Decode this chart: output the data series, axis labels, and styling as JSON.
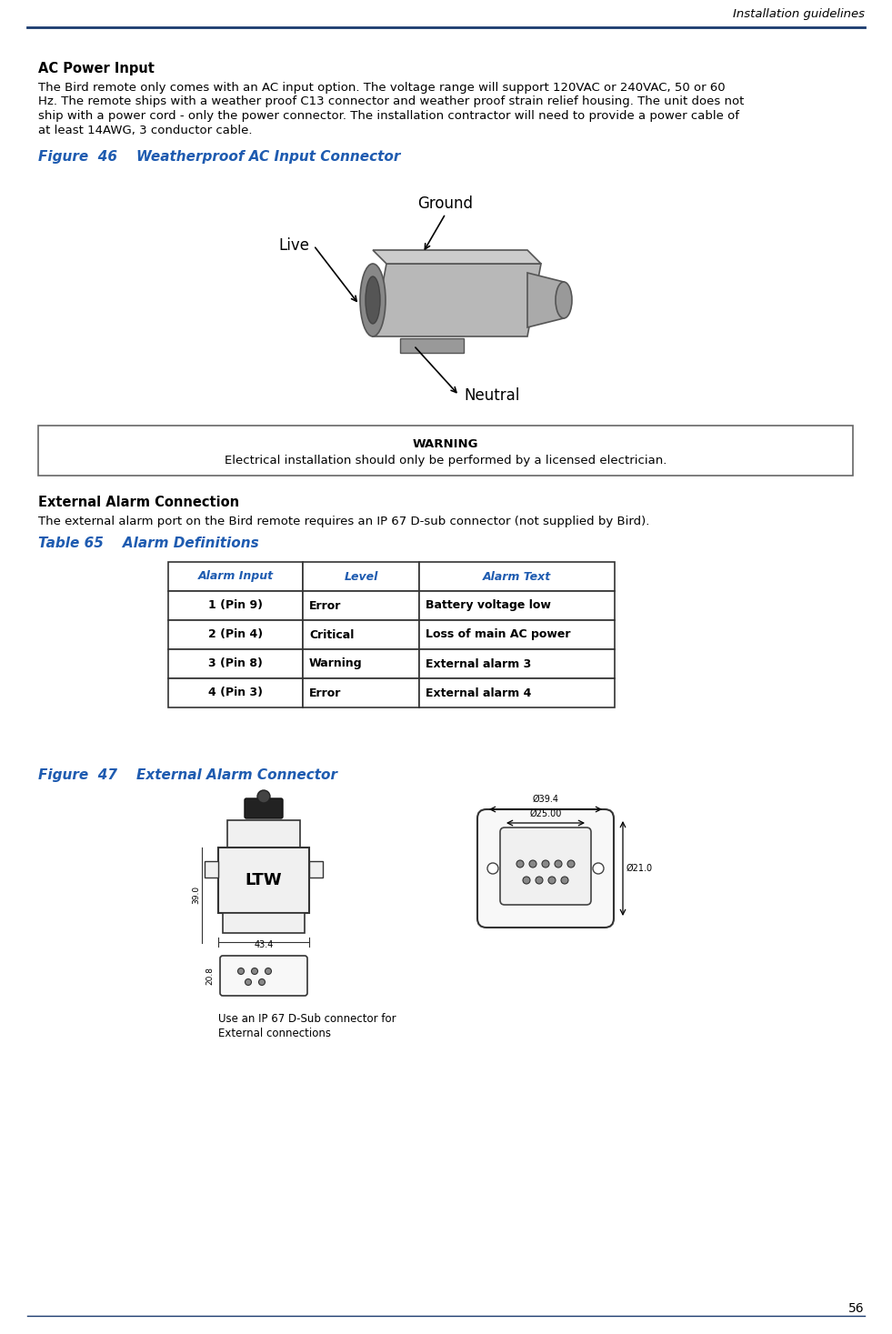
{
  "page_title": "Installation guidelines",
  "page_number": "56",
  "header_line_color": "#1a3a6e",
  "ac_power_heading": "AC Power Input",
  "ac_power_lines": [
    "The Bird remote only comes with an AC input option. The voltage range will support 120VAC or 240VAC, 50 or 60",
    "Hz. The remote ships with a weather proof C13 connector and weather proof strain relief housing. The unit does not",
    "ship with a power cord - only the power connector. The installation contractor will need to provide a power cable of",
    "at least 14AWG, 3 conductor cable."
  ],
  "fig46_label": "Figure  46    Weatherproof AC Input Connector",
  "warning_title": "WARNING",
  "warning_body": "Electrical installation should only be performed by a licensed electrician.",
  "ext_alarm_heading": "External Alarm Connection",
  "ext_alarm_body": "The external alarm port on the Bird remote requires an IP 67 D-sub connector (not supplied by Bird).",
  "table65_label": "Table 65    Alarm Definitions",
  "table_headers": [
    "Alarm Input",
    "Level",
    "Alarm Text"
  ],
  "table_rows": [
    [
      "1 (Pin 9)",
      "Error",
      "Battery voltage low"
    ],
    [
      "2 (Pin 4)",
      "Critical",
      "Loss of main AC power"
    ],
    [
      "3 (Pin 8)",
      "Warning",
      "External alarm 3"
    ],
    [
      "4 (Pin 3)",
      "Error",
      "External alarm 4"
    ]
  ],
  "fig47_label": "Figure  47    External Alarm Connector",
  "fig47_caption_line1": "Use an IP 67 D-Sub connector for",
  "fig47_caption_line2": "External connections",
  "bg_color": "#ffffff",
  "text_color": "#000000",
  "blue_color": "#1e5bb0",
  "line_color": "#1a3a6e"
}
